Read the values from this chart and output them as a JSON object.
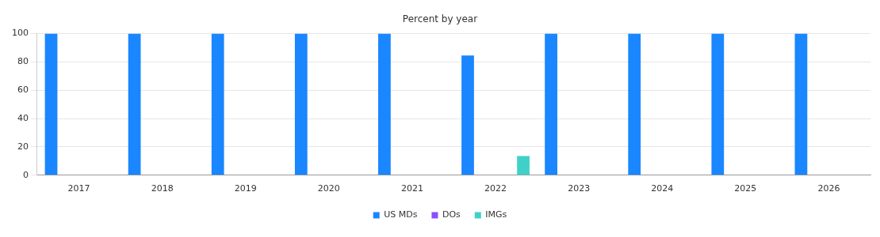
{
  "chart_data": {
    "type": "bar",
    "title": "Percent by year",
    "categories": [
      "2017",
      "2018",
      "2019",
      "2020",
      "2021",
      "2022",
      "2023",
      "2024",
      "2025",
      "2026"
    ],
    "series": [
      {
        "name": "US MDs",
        "color": "#1a86ff",
        "values": [
          100,
          100,
          100,
          100,
          100,
          84.5,
          100,
          100,
          100,
          100
        ]
      },
      {
        "name": "DOs",
        "color": "#8a4fff",
        "values": [
          0,
          0,
          0,
          0,
          0,
          0,
          0,
          0,
          0,
          0
        ]
      },
      {
        "name": "IMGs",
        "color": "#3fd1c8",
        "values": [
          0,
          0,
          0,
          0,
          0,
          13.5,
          0,
          0,
          0,
          0
        ]
      }
    ],
    "ylim": [
      0,
      100
    ],
    "yticks": [
      0,
      20,
      40,
      60,
      80,
      100
    ],
    "grid": "y",
    "legend": "bottom"
  }
}
